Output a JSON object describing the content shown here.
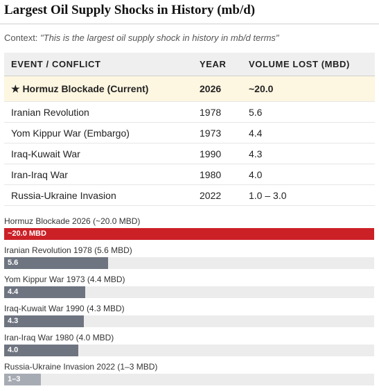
{
  "title": "Largest Oil Supply Shocks in History (mb/d)",
  "context": {
    "label": "Context:",
    "quote": "\"This is the largest oil supply shock in history in mb/d terms\""
  },
  "table": {
    "headers": [
      "EVENT / CONFLICT",
      "YEAR",
      "VOLUME LOST (MBD)"
    ],
    "rows": [
      {
        "event": "★ Hormuz Blockade (Current)",
        "year": "2026",
        "volume": "~20.0",
        "highlight": true
      },
      {
        "event": "Iranian Revolution",
        "year": "1978",
        "volume": "5.6"
      },
      {
        "event": "Yom Kippur War (Embargo)",
        "year": "1973",
        "volume": "4.4"
      },
      {
        "event": "Iraq-Kuwait War",
        "year": "1990",
        "volume": "4.3"
      },
      {
        "event": "Iran-Iraq War",
        "year": "1980",
        "volume": "4.0"
      },
      {
        "event": "Russia-Ukraine Invasion",
        "year": "2022",
        "volume": "1.0 – 3.0"
      }
    ]
  },
  "bars": [
    {
      "label": "Hormuz Blockade 2026 (~20.0 MBD)",
      "value_label": "~20.0 MBD",
      "value": 20.0
    },
    {
      "label": "Iranian Revolution 1978 (5.6 MBD)",
      "value_label": "5.6",
      "value": 5.6
    },
    {
      "label": "Yom Kippur War 1973 (4.4 MBD)",
      "value_label": "4.4",
      "value": 4.4
    },
    {
      "label": "Iraq-Kuwait War 1990 (4.3 MBD)",
      "value_label": "4.3",
      "value": 4.3
    },
    {
      "label": "Iran-Iraq War 1980 (4.0 MBD)",
      "value_label": "4.0",
      "value": 4.0
    },
    {
      "label": "Russia-Ukraine Invasion 2022 (1–3 MBD)",
      "value_label": "1–3",
      "value": 2.0
    }
  ],
  "colors": {
    "primary_bar": "#cc2027",
    "bar": "#6e7480",
    "range_bar": "#a7abb3",
    "highlight_row": "#fdf6e1"
  }
}
